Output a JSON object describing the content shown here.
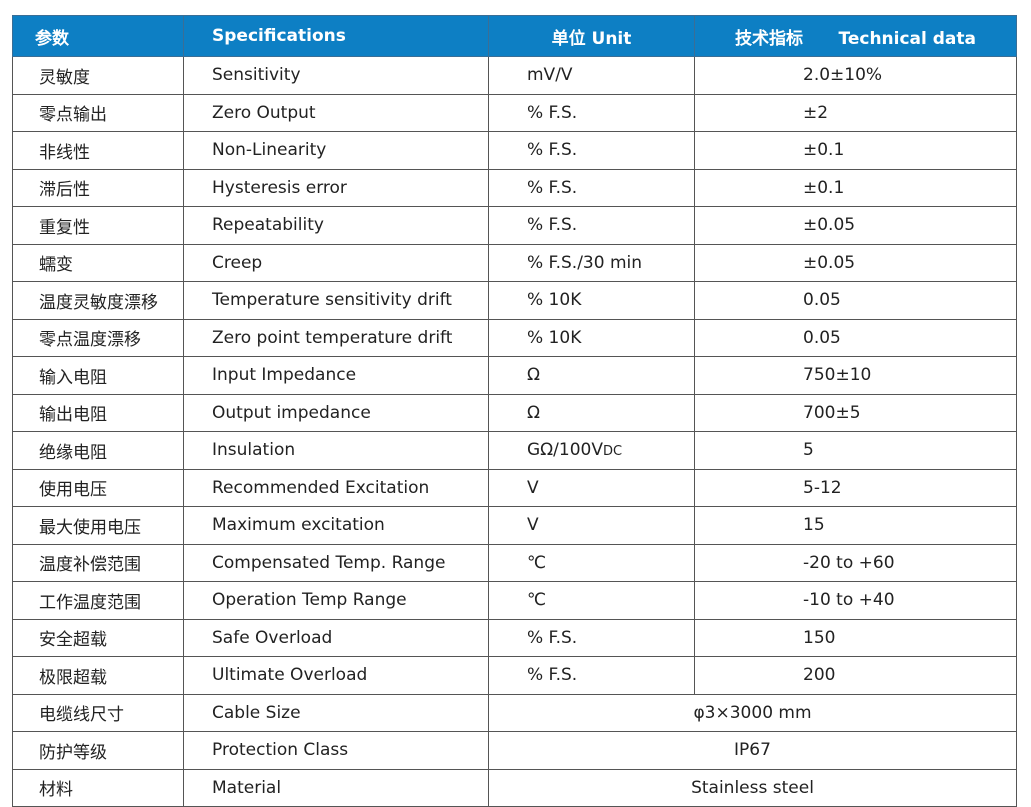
{
  "header": {
    "param": "参数",
    "spec": "Specifications",
    "unit": "单位 Unit",
    "value": "技术指标      Technical data"
  },
  "rows": [
    {
      "cn": "灵敏度",
      "en": "Sensitivity",
      "unit": "mV/V",
      "value": "2.0±10%"
    },
    {
      "cn": "零点输出",
      "en": "Zero Output",
      "unit": "% F.S.",
      "value": "±2"
    },
    {
      "cn": "非线性",
      "en": "Non-Linearity",
      "unit": "% F.S.",
      "value": "±0.1"
    },
    {
      "cn": "滞后性",
      "en": "Hysteresis error",
      "unit": "% F.S.",
      "value": "±0.1"
    },
    {
      "cn": "重复性",
      "en": "Repeatability",
      "unit": "% F.S.",
      "value": "±0.05"
    },
    {
      "cn": "蠕变",
      "en": "Creep",
      "unit": "% F.S./30 min",
      "value": "±0.05"
    },
    {
      "cn": "温度灵敏度漂移",
      "en": "Temperature sensitivity drift",
      "unit": "% 10K",
      "value": "0.05"
    },
    {
      "cn": "零点温度漂移",
      "en": "Zero point temperature drift",
      "unit": "% 10K",
      "value": "0.05"
    },
    {
      "cn": "输入电阻",
      "en": "Input Impedance",
      "unit": "Ω",
      "value": "750±10"
    },
    {
      "cn": "输出电阻",
      "en": "Output impedance",
      "unit": "Ω",
      "value": "700±5"
    },
    {
      "cn": "绝缘电阻",
      "en": "Insulation",
      "unit": "GΩ/100V",
      "unit_sub": "DC",
      "value": "5"
    },
    {
      "cn": "使用电压",
      "en": "Recommended Excitation",
      "unit": "V",
      "value": "5-12"
    },
    {
      "cn": "最大使用电压",
      "en": "Maximum excitation",
      "unit": "V",
      "value": "15"
    },
    {
      "cn": "温度补偿范围",
      "en": "Compensated Temp. Range",
      "unit": "℃",
      "value": "-20 to +60"
    },
    {
      "cn": "工作温度范围",
      "en": "Operation Temp Range",
      "unit": "℃",
      "value": "-10 to +40"
    },
    {
      "cn": "安全超载",
      "en": "Safe Overload",
      "unit": "% F.S.",
      "value": "150"
    },
    {
      "cn": "极限超载",
      "en": "Ultimate Overload",
      "unit": "% F.S.",
      "value": "200"
    },
    {
      "cn": "电缆线尺寸",
      "en": "Cable Size",
      "merged": "φ3×3000 mm"
    },
    {
      "cn": "防护等级",
      "en": "Protection Class",
      "merged": "IP67"
    },
    {
      "cn": "材料",
      "en": "Material",
      "merged": "Stainless steel"
    }
  ],
  "colors": {
    "header_bg": "#0d7fc4",
    "header_text": "#ffffff"
  }
}
